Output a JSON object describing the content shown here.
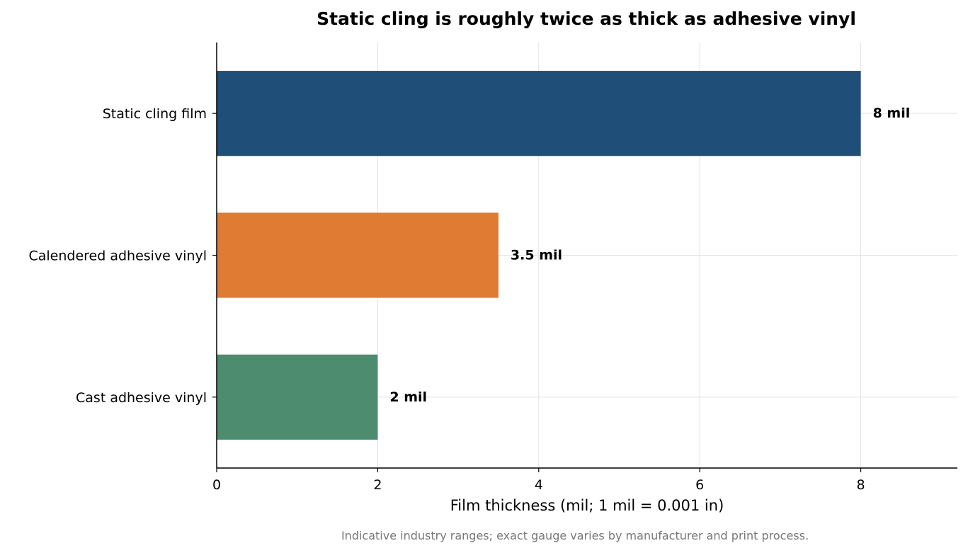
{
  "chart_data": {
    "type": "bar",
    "orientation": "horizontal",
    "title": "Static cling is roughly twice as thick as adhesive vinyl",
    "xlabel": "Film thickness (mil; 1 mil = 0.001 in)",
    "ylabel": "",
    "footnote": "Indicative industry ranges; exact gauge varies by manufacturer and print process.",
    "categories": [
      "Static cling film",
      "Calendered adhesive vinyl",
      "Cast adhesive vinyl"
    ],
    "values": [
      8,
      3.5,
      2
    ],
    "data_labels": [
      "8 mil",
      "3.5 mil",
      "2 mil"
    ],
    "colors": [
      "#1f4e79",
      "#e07b33",
      "#4d8c6f"
    ],
    "xlim": [
      0,
      9.2
    ],
    "xticks": [
      0,
      2,
      4,
      6,
      8
    ],
    "xtick_labels": [
      "0",
      "2",
      "4",
      "6",
      "8"
    ],
    "grid": true,
    "legend": "none"
  }
}
